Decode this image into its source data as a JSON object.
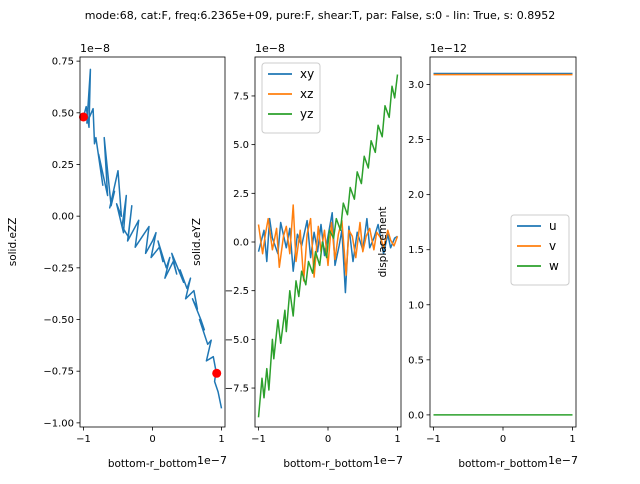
{
  "figure_title": "mode:68, cat:F, freq:6.2365e+09, pure:F, shear:T, par: False, s:0 - lin: True, s: 0.8952",
  "chart_data": [
    {
      "type": "line",
      "xlabel": "bottom-r_bottom",
      "ylabel": "solid.eZZ",
      "x_offset_text": "1e−7",
      "y_offset_text": "1e−8",
      "xlim": [
        -1.05,
        1.05
      ],
      "ylim": [
        -1.02,
        0.77
      ],
      "x_ticks": [
        -1,
        0,
        1
      ],
      "x_tick_labels": [
        "−1",
        "0",
        "1"
      ],
      "y_ticks": [
        -1.0,
        -0.75,
        -0.5,
        -0.25,
        0.0,
        0.25,
        0.5,
        0.75
      ],
      "y_tick_labels": [
        "−1.00",
        "−0.75",
        "−0.50",
        "−0.25",
        "0.00",
        "0.25",
        "0.50",
        "0.75"
      ],
      "series": [
        {
          "color": "#1f77b4",
          "x": [
            -1.0,
            -0.96,
            -0.92,
            -0.9,
            -0.95,
            -0.86,
            -0.84,
            -0.82,
            -0.72,
            -0.78,
            -0.65,
            -0.7,
            -0.6,
            -0.55,
            -0.62,
            -0.5,
            -0.45,
            -0.52,
            -0.42,
            -0.38,
            -0.44,
            -0.35,
            -0.3,
            -0.36,
            -0.2,
            -0.25,
            -0.15,
            -0.05,
            -0.1,
            0.0,
            0.05,
            -0.02,
            0.1,
            0.15,
            0.08,
            0.2,
            0.25,
            0.18,
            0.3,
            0.35,
            0.28,
            0.45,
            0.4,
            0.5,
            0.55,
            0.48,
            0.6,
            0.65,
            0.58,
            0.7,
            0.75,
            0.68,
            0.8,
            0.85,
            0.78,
            0.88,
            0.92,
            0.9,
            0.95,
            1.0
          ],
          "y": [
            0.48,
            0.53,
            0.43,
            0.71,
            0.45,
            0.52,
            0.35,
            0.38,
            0.15,
            0.3,
            0.1,
            0.38,
            0.05,
            0.12,
            0.04,
            0.22,
            0.0,
            0.06,
            -0.08,
            0.1,
            -0.05,
            -0.1,
            0.05,
            -0.12,
            -0.02,
            -0.15,
            -0.1,
            -0.05,
            -0.18,
            -0.12,
            -0.08,
            -0.2,
            -0.15,
            -0.22,
            -0.12,
            -0.25,
            -0.2,
            -0.3,
            -0.22,
            -0.28,
            -0.18,
            -0.32,
            -0.26,
            -0.35,
            -0.3,
            -0.4,
            -0.36,
            -0.45,
            -0.4,
            -0.5,
            -0.55,
            -0.5,
            -0.62,
            -0.6,
            -0.7,
            -0.68,
            -0.75,
            -0.8,
            -0.85,
            -0.93
          ]
        }
      ],
      "markers": {
        "color": "#ff0000",
        "points": [
          [
            -1.0,
            0.48
          ],
          [
            0.93,
            -0.76
          ]
        ]
      }
    },
    {
      "type": "line",
      "xlabel": "bottom-r_bottom",
      "ylabel": "solid.eYZ",
      "x_offset_text": "1e−7",
      "y_offset_text": "1e−8",
      "xlim": [
        -1.05,
        1.05
      ],
      "ylim": [
        -9.5,
        9.5
      ],
      "x_ticks": [
        -1,
        0,
        1
      ],
      "x_tick_labels": [
        "−1",
        "0",
        "1"
      ],
      "y_ticks": [
        -7.5,
        -5.0,
        -2.5,
        0.0,
        2.5,
        5.0,
        7.5
      ],
      "y_tick_labels": [
        "−7.5",
        "−5.0",
        "−2.5",
        "0.0",
        "2.5",
        "5.0",
        "7.5"
      ],
      "legend": {
        "position": "upper-left",
        "entries": [
          "xy",
          "xz",
          "yz"
        ]
      },
      "series": [
        {
          "name": "xy",
          "color": "#1f77b4",
          "x": [
            -1.0,
            -0.92,
            -0.88,
            -0.84,
            -0.8,
            -0.72,
            -0.68,
            -0.6,
            -0.55,
            -0.5,
            -0.44,
            -0.38,
            -0.3,
            -0.25,
            -0.2,
            -0.15,
            -0.1,
            -0.05,
            0.0,
            0.06,
            0.1,
            0.16,
            0.2,
            0.25,
            0.3,
            0.36,
            0.42,
            0.5,
            0.56,
            0.6,
            0.66,
            0.72,
            0.8,
            0.86,
            0.9,
            0.96,
            1.0
          ],
          "y": [
            -0.5,
            0.6,
            -1.0,
            1.2,
            0.2,
            -0.6,
            1.0,
            -0.3,
            0.7,
            -1.5,
            0.4,
            -0.2,
            1.1,
            -0.8,
            0.5,
            -0.5,
            0.9,
            -0.7,
            0.3,
            1.5,
            -1.2,
            -0.2,
            0.6,
            -2.6,
            0.8,
            -1.0,
            0.5,
            -0.4,
            1.2,
            -0.3,
            0.2,
            0.9,
            -0.6,
            0.4,
            -0.3,
            0.2,
            0.3
          ]
        },
        {
          "name": "xz",
          "color": "#ff7f0e",
          "x": [
            -1.0,
            -0.94,
            -0.9,
            -0.86,
            -0.8,
            -0.74,
            -0.7,
            -0.64,
            -0.6,
            -0.55,
            -0.5,
            -0.46,
            -0.4,
            -0.35,
            -0.3,
            -0.25,
            -0.2,
            -0.14,
            -0.1,
            -0.05,
            0.0,
            0.05,
            0.1,
            0.15,
            0.2,
            0.26,
            0.3,
            0.35,
            0.4,
            0.46,
            0.5,
            0.55,
            0.6,
            0.66,
            0.7,
            0.76,
            0.8,
            0.86,
            0.9,
            0.95,
            1.0
          ],
          "y": [
            0.9,
            -0.6,
            0.4,
            1.2,
            -0.4,
            0.7,
            -1.3,
            0.3,
            0.8,
            -0.6,
            1.9,
            -1.0,
            0.6,
            -2.0,
            0.4,
            1.2,
            -1.8,
            0.8,
            -0.5,
            0.6,
            -1.2,
            1.0,
            -0.9,
            0.4,
            1.1,
            -1.7,
            0.6,
            0.3,
            -0.8,
            1.0,
            -0.5,
            0.3,
            0.7,
            -0.4,
            0.5,
            0.2,
            -0.3,
            0.6,
            0.1,
            -0.2,
            0.3
          ]
        },
        {
          "name": "yz",
          "color": "#2ca02c",
          "x": [
            -1.0,
            -0.95,
            -0.92,
            -0.88,
            -0.85,
            -0.8,
            -0.78,
            -0.72,
            -0.68,
            -0.62,
            -0.6,
            -0.55,
            -0.5,
            -0.46,
            -0.42,
            -0.38,
            -0.32,
            -0.28,
            -0.22,
            -0.18,
            -0.12,
            -0.08,
            -0.02,
            0.02,
            0.08,
            0.12,
            0.18,
            0.22,
            0.28,
            0.32,
            0.38,
            0.42,
            0.48,
            0.52,
            0.58,
            0.62,
            0.68,
            0.72,
            0.78,
            0.82,
            0.88,
            0.92,
            0.96,
            1.0
          ],
          "y": [
            -9.0,
            -7.0,
            -8.0,
            -6.5,
            -7.6,
            -5.0,
            -6.0,
            -4.0,
            -5.2,
            -3.5,
            -4.6,
            -2.5,
            -3.8,
            -2.0,
            -2.8,
            -1.5,
            -2.2,
            -1.0,
            -1.6,
            -0.5,
            -1.2,
            0.0,
            -0.8,
            0.6,
            0.2,
            1.2,
            0.6,
            2.0,
            1.4,
            2.8,
            2.2,
            3.6,
            3.0,
            4.4,
            3.8,
            5.2,
            4.6,
            6.0,
            5.4,
            7.0,
            6.4,
            8.0,
            7.4,
            8.6
          ]
        }
      ]
    },
    {
      "type": "line",
      "xlabel": "bottom-r_bottom",
      "ylabel": "displacement",
      "x_offset_text": "1e−7",
      "y_offset_text": "1e−12",
      "xlim": [
        -1.05,
        1.05
      ],
      "ylim": [
        -0.11,
        3.25
      ],
      "x_ticks": [
        -1,
        0,
        1
      ],
      "x_tick_labels": [
        "−1",
        "0",
        "1"
      ],
      "y_ticks": [
        0.0,
        0.5,
        1.0,
        1.5,
        2.0,
        2.5,
        3.0
      ],
      "y_tick_labels": [
        "0.0",
        "0.5",
        "1.0",
        "1.5",
        "2.0",
        "2.5",
        "3.0"
      ],
      "legend": {
        "position": "center-right",
        "entries": [
          "u",
          "v",
          "w"
        ]
      },
      "series": [
        {
          "name": "u",
          "color": "#1f77b4",
          "x": [
            -1.0,
            1.0
          ],
          "y": [
            3.1,
            3.1
          ]
        },
        {
          "name": "v",
          "color": "#ff7f0e",
          "x": [
            -1.0,
            1.0
          ],
          "y": [
            3.09,
            3.09
          ]
        },
        {
          "name": "w",
          "color": "#2ca02c",
          "x": [
            -1.0,
            1.0
          ],
          "y": [
            0.0,
            0.0
          ]
        }
      ]
    }
  ]
}
